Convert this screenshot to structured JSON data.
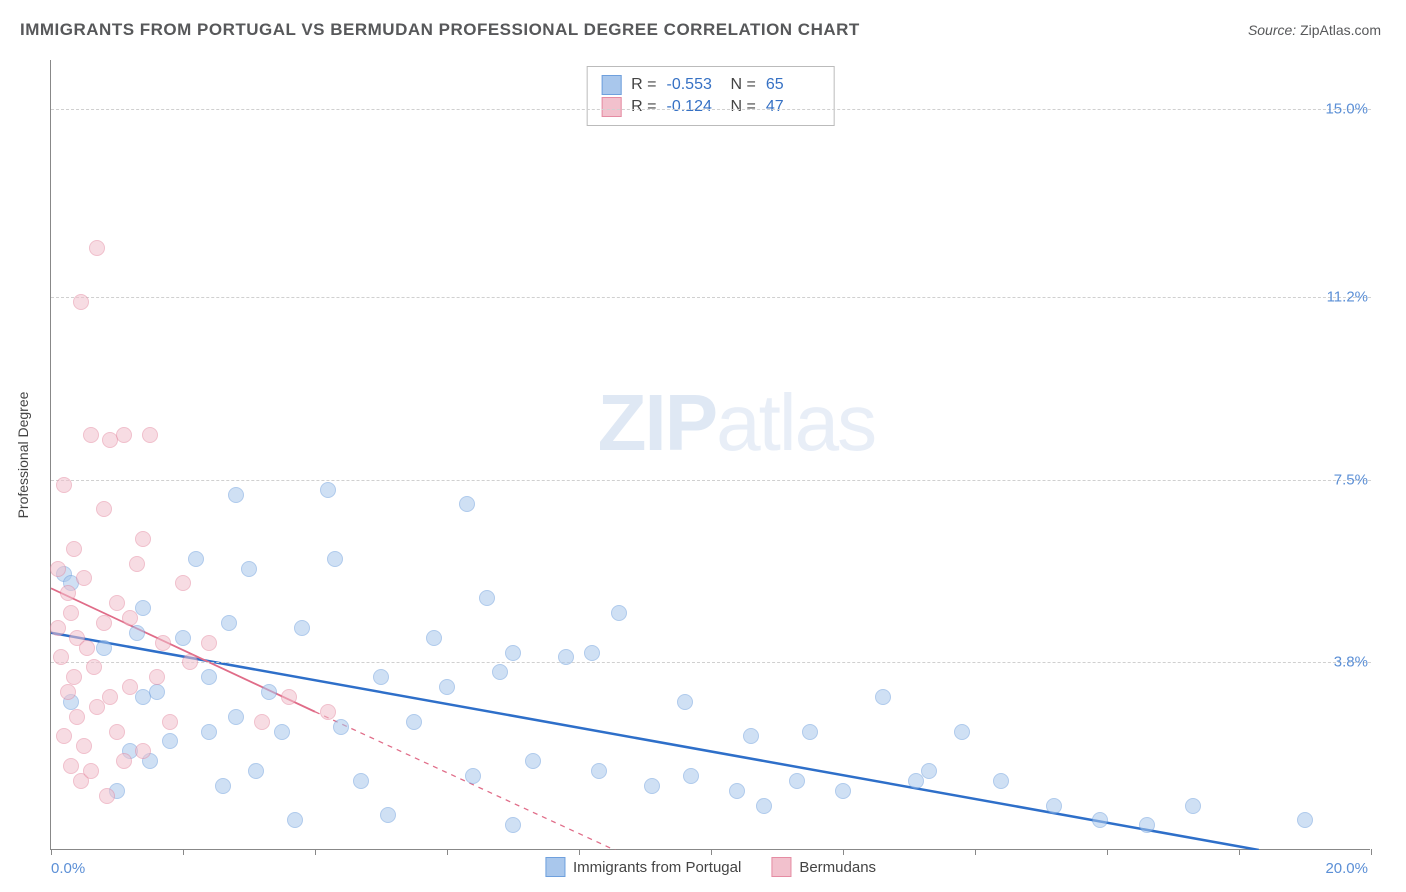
{
  "title": "IMMIGRANTS FROM PORTUGAL VS BERMUDAN PROFESSIONAL DEGREE CORRELATION CHART",
  "source_label": "Source:",
  "source_value": "ZipAtlas.com",
  "watermark_a": "ZIP",
  "watermark_b": "atlas",
  "chart": {
    "type": "scatter",
    "background_color": "#ffffff",
    "grid_color": "#d0d0d0",
    "axis_color": "#888888",
    "x_axis": {
      "min": 0.0,
      "max": 20.0,
      "ticks_every": 2.0,
      "label_min": "0.0%",
      "label_max": "20.0%"
    },
    "y_axis": {
      "min": 0.0,
      "max": 16.0,
      "title": "Professional Degree",
      "gridlines": [
        {
          "value": 15.0,
          "label": "15.0%"
        },
        {
          "value": 11.2,
          "label": "11.2%"
        },
        {
          "value": 7.5,
          "label": "7.5%"
        },
        {
          "value": 3.8,
          "label": "3.8%"
        }
      ]
    },
    "marker_radius": 8,
    "marker_opacity": 0.55,
    "series": [
      {
        "id": "portugal",
        "label": "Immigrants from Portugal",
        "legend_top_label": "R =",
        "r_value": "-0.553",
        "n_label": "N =",
        "n_value": "65",
        "color_fill": "#a9c7ec",
        "color_stroke": "#6fa0dd",
        "trend": {
          "x1": 0.0,
          "y1": 4.4,
          "x2": 18.3,
          "y2": 0.0,
          "color": "#2e6fc9",
          "width": 2.5,
          "dash": "none"
        },
        "points": [
          [
            0.2,
            5.6
          ],
          [
            0.3,
            5.4
          ],
          [
            0.3,
            3.0
          ],
          [
            0.8,
            4.1
          ],
          [
            1.0,
            1.2
          ],
          [
            1.2,
            2.0
          ],
          [
            1.3,
            4.4
          ],
          [
            1.4,
            4.9
          ],
          [
            1.4,
            3.1
          ],
          [
            1.5,
            1.8
          ],
          [
            1.6,
            3.2
          ],
          [
            1.8,
            2.2
          ],
          [
            2.0,
            4.3
          ],
          [
            2.2,
            5.9
          ],
          [
            2.4,
            2.4
          ],
          [
            2.4,
            3.5
          ],
          [
            2.6,
            1.3
          ],
          [
            2.7,
            4.6
          ],
          [
            2.8,
            7.2
          ],
          [
            2.8,
            2.7
          ],
          [
            3.0,
            5.7
          ],
          [
            3.1,
            1.6
          ],
          [
            3.3,
            3.2
          ],
          [
            3.5,
            2.4
          ],
          [
            3.7,
            0.6
          ],
          [
            3.8,
            4.5
          ],
          [
            4.2,
            7.3
          ],
          [
            4.3,
            5.9
          ],
          [
            4.4,
            2.5
          ],
          [
            4.7,
            1.4
          ],
          [
            5.0,
            3.5
          ],
          [
            5.1,
            0.7
          ],
          [
            5.5,
            2.6
          ],
          [
            5.8,
            4.3
          ],
          [
            6.0,
            3.3
          ],
          [
            6.3,
            7.0
          ],
          [
            6.4,
            1.5
          ],
          [
            6.6,
            5.1
          ],
          [
            6.8,
            3.6
          ],
          [
            7.0,
            0.5
          ],
          [
            7.0,
            4.0
          ],
          [
            7.3,
            1.8
          ],
          [
            7.8,
            3.9
          ],
          [
            8.2,
            4.0
          ],
          [
            8.3,
            1.6
          ],
          [
            8.6,
            4.8
          ],
          [
            9.1,
            1.3
          ],
          [
            9.6,
            3.0
          ],
          [
            9.7,
            1.5
          ],
          [
            10.4,
            1.2
          ],
          [
            10.6,
            2.3
          ],
          [
            10.8,
            0.9
          ],
          [
            11.3,
            1.4
          ],
          [
            11.5,
            2.4
          ],
          [
            12.0,
            1.2
          ],
          [
            12.6,
            3.1
          ],
          [
            13.1,
            1.4
          ],
          [
            13.3,
            1.6
          ],
          [
            13.8,
            2.4
          ],
          [
            14.4,
            1.4
          ],
          [
            15.2,
            0.9
          ],
          [
            15.9,
            0.6
          ],
          [
            16.6,
            0.5
          ],
          [
            17.3,
            0.9
          ],
          [
            19.0,
            0.6
          ]
        ]
      },
      {
        "id": "bermudans",
        "label": "Bermudans",
        "legend_top_label": "R =",
        "r_value": "-0.124",
        "n_label": "N =",
        "n_value": "47",
        "color_fill": "#f2c1cd",
        "color_stroke": "#e58ca3",
        "trend": {
          "x1": 0.0,
          "y1": 5.3,
          "x2": 4.0,
          "y2": 2.8,
          "x3": 10.0,
          "y3": -0.9,
          "color": "#e06c88",
          "width": 1.8,
          "dash": "5,5",
          "solid_until_x": 4.0
        },
        "points": [
          [
            0.1,
            5.7
          ],
          [
            0.1,
            4.5
          ],
          [
            0.2,
            7.4
          ],
          [
            0.15,
            3.9
          ],
          [
            0.2,
            2.3
          ],
          [
            0.25,
            3.2
          ],
          [
            0.25,
            5.2
          ],
          [
            0.3,
            4.8
          ],
          [
            0.3,
            1.7
          ],
          [
            0.35,
            6.1
          ],
          [
            0.35,
            3.5
          ],
          [
            0.4,
            2.7
          ],
          [
            0.4,
            4.3
          ],
          [
            0.45,
            11.1
          ],
          [
            0.45,
            1.4
          ],
          [
            0.5,
            5.5
          ],
          [
            0.5,
            2.1
          ],
          [
            0.55,
            4.1
          ],
          [
            0.6,
            8.4
          ],
          [
            0.6,
            1.6
          ],
          [
            0.65,
            3.7
          ],
          [
            0.7,
            12.2
          ],
          [
            0.7,
            2.9
          ],
          [
            0.8,
            6.9
          ],
          [
            0.8,
            4.6
          ],
          [
            0.85,
            1.1
          ],
          [
            0.9,
            8.3
          ],
          [
            0.9,
            3.1
          ],
          [
            1.0,
            5.0
          ],
          [
            1.0,
            2.4
          ],
          [
            1.1,
            8.4
          ],
          [
            1.1,
            1.8
          ],
          [
            1.2,
            4.7
          ],
          [
            1.2,
            3.3
          ],
          [
            1.3,
            5.8
          ],
          [
            1.4,
            6.3
          ],
          [
            1.4,
            2.0
          ],
          [
            1.5,
            8.4
          ],
          [
            1.6,
            3.5
          ],
          [
            1.7,
            4.2
          ],
          [
            1.8,
            2.6
          ],
          [
            2.0,
            5.4
          ],
          [
            2.1,
            3.8
          ],
          [
            2.4,
            4.2
          ],
          [
            3.2,
            2.6
          ],
          [
            3.6,
            3.1
          ],
          [
            4.2,
            2.8
          ]
        ]
      }
    ]
  }
}
